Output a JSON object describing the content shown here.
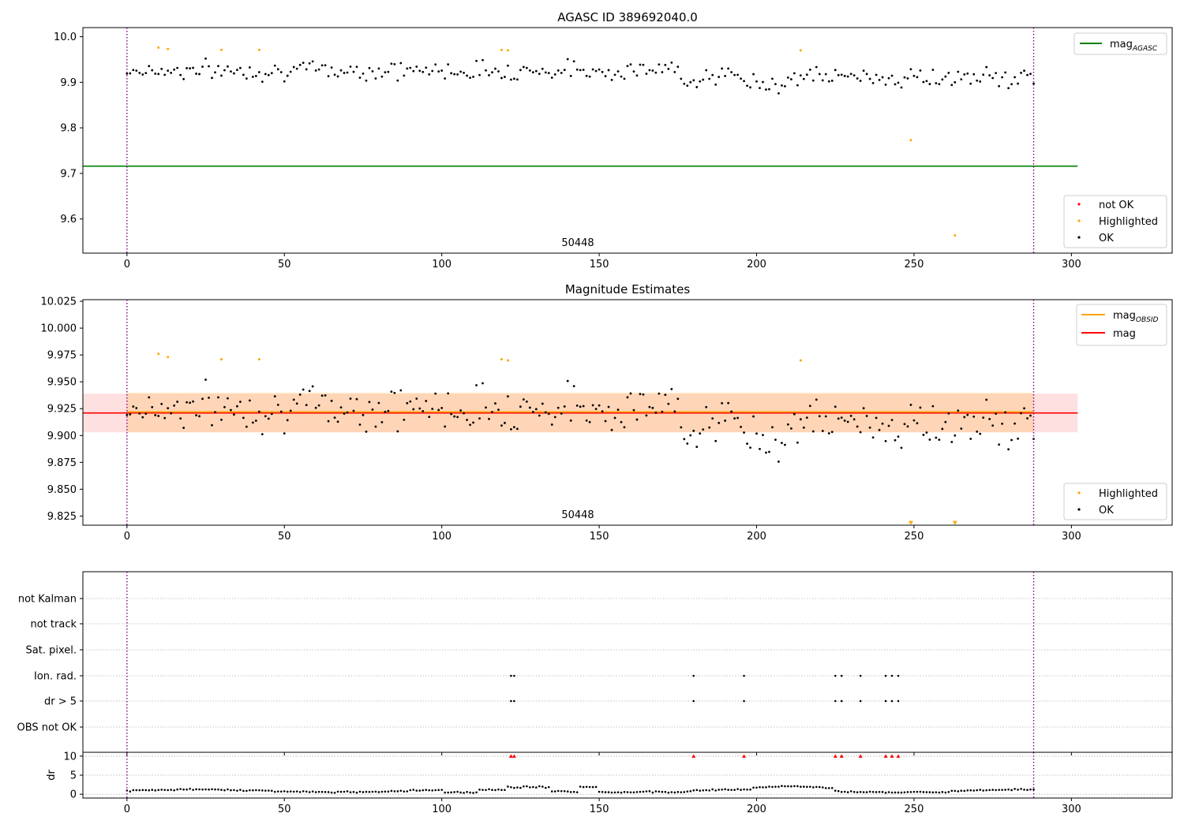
{
  "chart_data": [
    {
      "type": "scatter",
      "title": "AGASC ID 389692040.0",
      "xlim": [
        -14,
        332
      ],
      "ylim": [
        9.525,
        10.02
      ],
      "xticks": [
        "0",
        "50",
        "100",
        "150",
        "200",
        "250",
        "300"
      ],
      "yticks": [
        "9.6",
        "9.7",
        "9.8",
        "9.9",
        "10.0"
      ],
      "vlines": [
        0,
        288
      ],
      "hline": {
        "value": 9.716,
        "x_end": 302,
        "color": "#008000",
        "label": "mag",
        "sub": "AGASC"
      },
      "annotation": {
        "text": "50448",
        "x": 144,
        "y": 9.53
      },
      "legend_points": [
        {
          "label": "not OK",
          "color": "#ff0000"
        },
        {
          "label": "Highlighted",
          "color": "#ffa500"
        },
        {
          "label": "OK",
          "color": "#000000"
        }
      ],
      "highlighted": {
        "x": [
          10,
          13,
          30,
          42,
          119,
          121,
          214,
          249,
          263
        ],
        "y": [
          9.976,
          9.973,
          9.971,
          9.971,
          9.971,
          9.97,
          9.97,
          9.773,
          9.564
        ]
      }
    },
    {
      "type": "scatter",
      "title": "Magnitude Estimates",
      "xlim": [
        -14,
        332
      ],
      "ylim": [
        9.8165,
        10.0265
      ],
      "xticks": [
        "0",
        "50",
        "100",
        "150",
        "200",
        "250",
        "300"
      ],
      "yticks": [
        "9.825",
        "9.850",
        "9.875",
        "9.900",
        "9.925",
        "9.950",
        "9.975",
        "10.000",
        "10.025"
      ],
      "vlines": [
        0,
        288
      ],
      "mag_line": {
        "value": 9.921,
        "x_end": 302,
        "color": "#ff0000",
        "label": "mag",
        "band": [
          9.903,
          9.939
        ]
      },
      "obsid_line": {
        "value": 9.922,
        "x_end": 302,
        "color": "#ffa500",
        "label": "mag",
        "sub": "OBSID",
        "band": [
          9.903,
          9.94
        ]
      },
      "annotation": {
        "text": "50448",
        "x": 144,
        "y": 9.821
      },
      "legend_points": [
        {
          "label": "Highlighted",
          "color": "#ffa500"
        },
        {
          "label": "OK",
          "color": "#000000"
        }
      ],
      "highlighted": {
        "x": [
          10,
          13,
          30,
          42,
          119,
          121,
          214
        ],
        "y": [
          9.976,
          9.973,
          9.971,
          9.971,
          9.971,
          9.97,
          9.97
        ]
      },
      "offscale_markers": {
        "x": [
          249,
          263
        ],
        "y": 9.819
      }
    },
    {
      "type": "scatter",
      "title": "",
      "xlim": [
        -14,
        332
      ],
      "vlines": [
        0,
        288
      ],
      "flag_rows": [
        "not Kalman",
        "not track",
        "Sat. pixel.",
        "Ion. rad.",
        "dr > 5",
        "OBS not OK"
      ],
      "flag_points": {
        "Ion. rad.": [
          122,
          123,
          180,
          196,
          225,
          227,
          233,
          241,
          243,
          245
        ],
        "dr > 5": [
          122,
          123,
          180,
          196,
          225,
          227,
          233,
          241,
          243,
          245
        ]
      }
    },
    {
      "type": "scatter",
      "title": "",
      "ylabel": "dr",
      "xlim": [
        -14,
        332
      ],
      "ylim": [
        -1,
        11
      ],
      "xticks": [
        "0",
        "50",
        "100",
        "150",
        "200",
        "250",
        "300"
      ],
      "yticks": [
        "0",
        "5",
        "10"
      ],
      "vlines": [
        0,
        288
      ],
      "clipped_points": {
        "x": [
          122,
          123,
          180,
          196,
          225,
          227,
          233,
          241,
          243,
          245
        ],
        "y": 10
      }
    }
  ]
}
